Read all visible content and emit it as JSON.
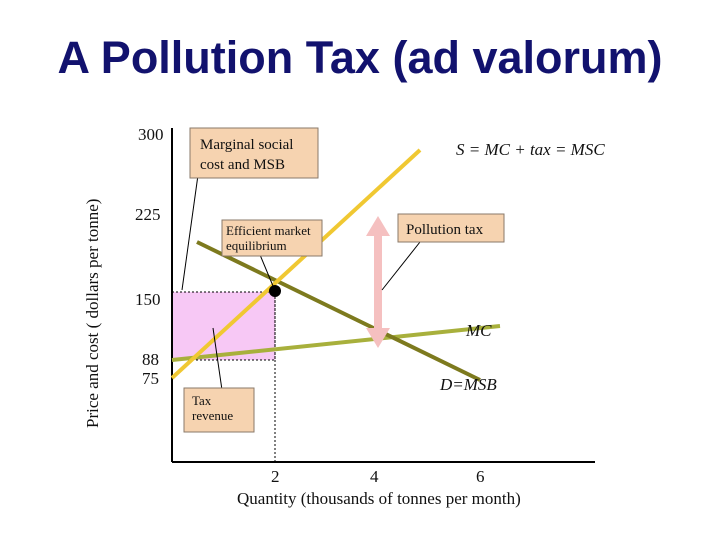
{
  "title": "A Pollution Tax (ad valorum)",
  "y_axis_label": "Price and cost ( dollars per tonne)",
  "x_axis_label": "Quantity (thousands of tonnes per month)",
  "y_ticks": [
    "300",
    "225",
    "150",
    "88",
    "75"
  ],
  "x_ticks": [
    "2",
    "4",
    "6"
  ],
  "labels": {
    "msc": "S = MC + tax = MSC",
    "mc": "MC",
    "dmsb": "D=MSB",
    "pollution_tax": "Pollution tax",
    "marginal_box_line1": "Marginal social",
    "marginal_box_line2": "cost and MSB",
    "efficient_line1": "Efficient market",
    "efficient_line2": "equilibrium",
    "tax_rev_line1": "Tax",
    "tax_rev_line2": "revenue"
  },
  "colors": {
    "title": "#12126e",
    "msc_line": "#f0c832",
    "mc_line": "#a8b03c",
    "demand_line": "#7d7a1e",
    "tax_area": "#f7c8f5",
    "box_fill": "#f6d3b0",
    "arrow": "#f5c0c0"
  }
}
